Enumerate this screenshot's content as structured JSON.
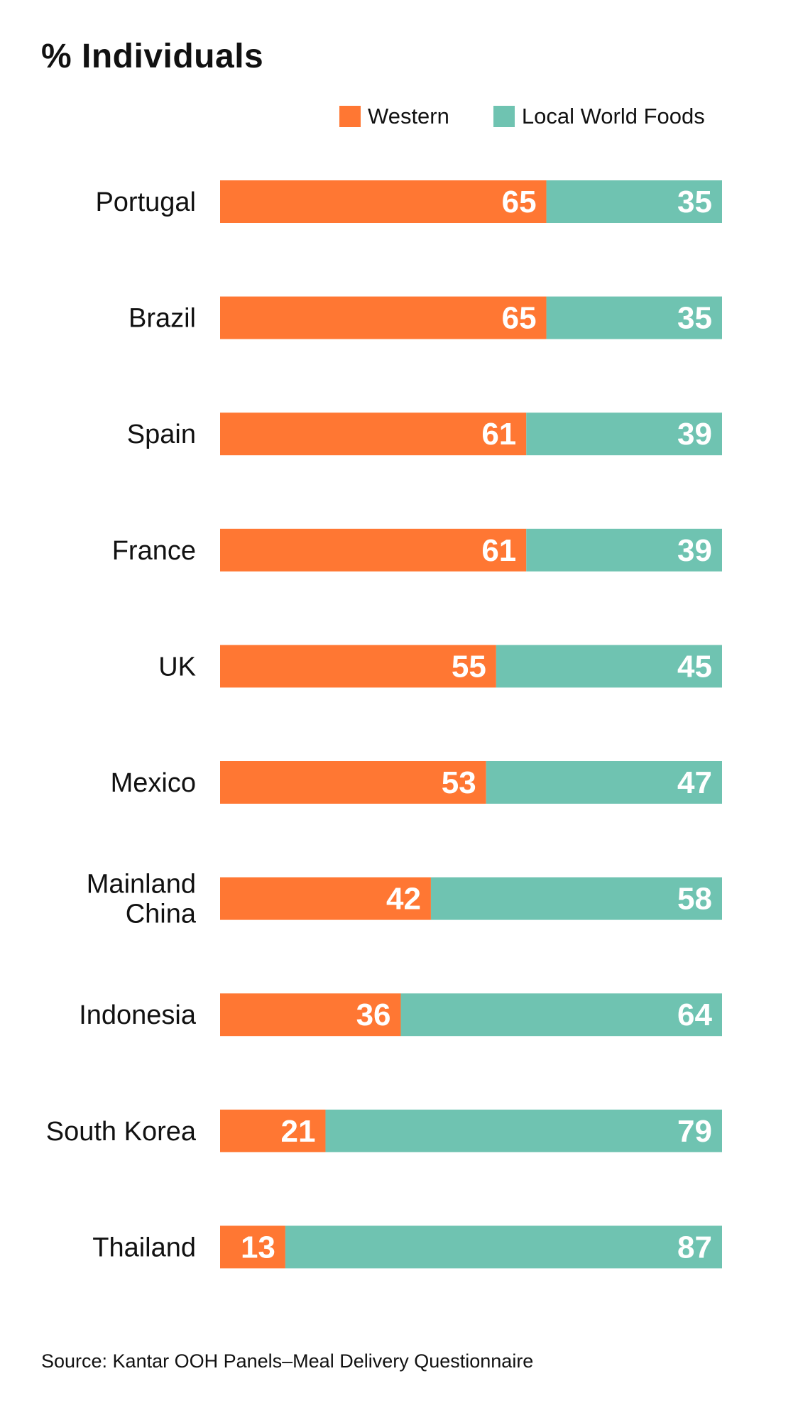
{
  "title": "% Individuals",
  "source": "Source: Kantar OOH Panels–Meal Delivery Questionnaire",
  "colors": {
    "western": "#FF7733",
    "local": "#6FC3B1",
    "label_on_bar": "#FFFFFF",
    "text": "#111111"
  },
  "chart_data": {
    "type": "bar",
    "orientation": "horizontal",
    "stacked": true,
    "title": "% Individuals",
    "xlim": [
      0,
      100
    ],
    "grid": false,
    "legend_position": "top-right",
    "categories": [
      [
        "Portugal"
      ],
      [
        "Brazil"
      ],
      [
        "Spain"
      ],
      [
        "France"
      ],
      [
        "UK"
      ],
      [
        "Mexico"
      ],
      [
        "Mainland",
        "China"
      ],
      [
        "Indonesia"
      ],
      [
        "South Korea"
      ],
      [
        "Thailand"
      ]
    ],
    "series": [
      {
        "name": "Western",
        "color": "#FF7733",
        "values": [
          65,
          65,
          61,
          61,
          55,
          53,
          42,
          36,
          21,
          13
        ]
      },
      {
        "name": "Local World Foods",
        "color": "#6FC3B1",
        "values": [
          35,
          35,
          39,
          39,
          45,
          47,
          58,
          64,
          79,
          87
        ]
      }
    ]
  }
}
